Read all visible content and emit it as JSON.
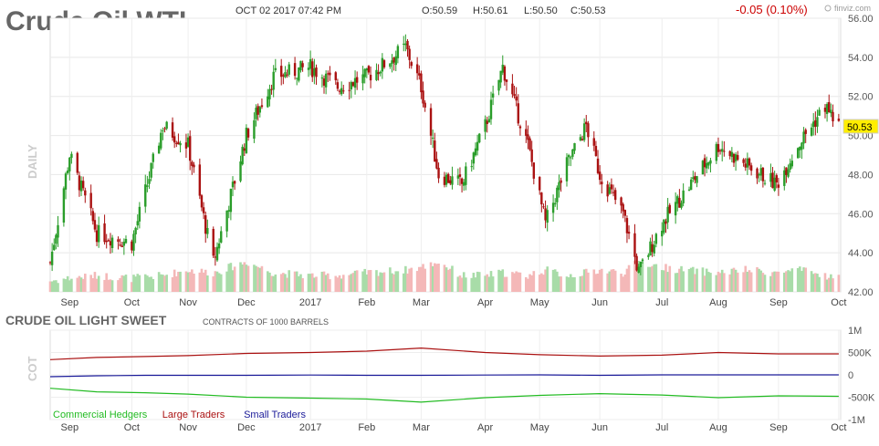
{
  "header": {
    "title": "Crude Oil WTI",
    "datetime": "OCT 02 2017 07:42 PM",
    "open": "O:50.59",
    "high": "H:50.61",
    "low": "L:50.50",
    "close": "C:50.53",
    "change": "-0.05 (0.10%)",
    "brand": "finviz.com",
    "price_tag": "50.53",
    "down_color": "#cc0000"
  },
  "price_chart": {
    "side_label": "DAILY",
    "y_ticks": [
      "56.00",
      "54.00",
      "52.00",
      "50.00",
      "48.00",
      "46.00",
      "44.00",
      "42.00"
    ],
    "x_ticks": [
      "Sep",
      "Oct",
      "Nov",
      "Dec",
      "2017",
      "Feb",
      "Mar",
      "Apr",
      "May",
      "Jun",
      "Jul",
      "Aug",
      "Sep",
      "Oct"
    ]
  },
  "cot_chart": {
    "title": "CRUDE OIL LIGHT SWEET",
    "subtitle": "CONTRACTS OF 1000 BARRELS",
    "side_label": "COT",
    "y_ticks": [
      "1M",
      "500K",
      "0",
      "-500K",
      "-1M"
    ],
    "legend": [
      {
        "name": "Commercial Hedgers",
        "color": "#22bb22"
      },
      {
        "name": "Large Traders",
        "color": "#aa1111"
      },
      {
        "name": "Small Traders",
        "color": "#1a1a99"
      }
    ]
  },
  "chart_data": [
    {
      "type": "candlestick",
      "title": "Crude Oil WTI",
      "ylim": [
        42,
        56
      ],
      "grid": true,
      "x": [
        "2016-08-22",
        "2016-09-01",
        "2016-09-15",
        "2016-10-03",
        "2016-10-19",
        "2016-11-01",
        "2016-11-14",
        "2016-12-01",
        "2016-12-15",
        "2017-01-03",
        "2017-01-17",
        "2017-02-01",
        "2017-02-21",
        "2017-03-01",
        "2017-03-10",
        "2017-03-22",
        "2017-04-03",
        "2017-04-12",
        "2017-04-25",
        "2017-05-04",
        "2017-05-15",
        "2017-05-25",
        "2017-06-01",
        "2017-06-13",
        "2017-06-21",
        "2017-07-03",
        "2017-07-14",
        "2017-08-01",
        "2017-08-15",
        "2017-08-31",
        "2017-09-11",
        "2017-09-25",
        "2017-10-02"
      ],
      "close": [
        43.5,
        49.0,
        45.0,
        44.5,
        50.5,
        49.5,
        43.5,
        50.0,
        53.0,
        53.5,
        52.5,
        53.0,
        54.5,
        52.5,
        48.0,
        47.5,
        50.5,
        53.5,
        49.5,
        45.5,
        48.5,
        50.5,
        48.0,
        46.0,
        43.0,
        45.5,
        47.0,
        49.5,
        48.5,
        47.5,
        49.5,
        51.5,
        50.53
      ],
      "volume_relative": [
        0.2,
        0.25,
        0.3,
        0.25,
        0.3,
        0.4,
        0.35,
        0.55,
        0.35,
        0.3,
        0.3,
        0.35,
        0.4,
        0.45,
        0.55,
        0.3,
        0.3,
        0.35,
        0.3,
        0.4,
        0.3,
        0.35,
        0.4,
        0.35,
        0.55,
        0.45,
        0.4,
        0.35,
        0.4,
        0.35,
        0.4,
        0.3,
        0.25
      ]
    },
    {
      "type": "line",
      "title": "CRUDE OIL LIGHT SWEET",
      "ylabel": "CONTRACTS OF 1000 BARRELS",
      "ylim": [
        -1000000,
        1000000
      ],
      "x": [
        "2016-08-22",
        "2016-09-15",
        "2016-10-10",
        "2016-11-01",
        "2016-12-01",
        "2017-01-03",
        "2017-02-01",
        "2017-03-01",
        "2017-04-03",
        "2017-05-01",
        "2017-06-01",
        "2017-07-03",
        "2017-08-01",
        "2017-09-01",
        "2017-10-02"
      ],
      "series": [
        {
          "name": "Commercial Hedgers",
          "values": [
            -300000,
            -380000,
            -400000,
            -430000,
            -500000,
            -520000,
            -540000,
            -610000,
            -510000,
            -460000,
            -420000,
            -450000,
            -510000,
            -470000,
            -480000
          ]
        },
        {
          "name": "Large Traders",
          "values": [
            340000,
            390000,
            410000,
            430000,
            480000,
            500000,
            530000,
            600000,
            500000,
            450000,
            420000,
            440000,
            500000,
            470000,
            470000
          ]
        },
        {
          "name": "Small Traders",
          "values": [
            -40000,
            -20000,
            -10000,
            -10000,
            -10000,
            -5000,
            -10000,
            -10000,
            -5000,
            0,
            -10000,
            0,
            0,
            0,
            0
          ]
        }
      ]
    }
  ]
}
